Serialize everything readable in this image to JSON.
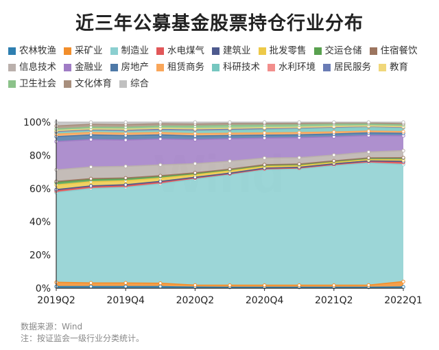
{
  "title": "近三年公募基金股票持仓行业分布",
  "footer": {
    "source": "数据来源：Wind",
    "note": "注：按证监会一级行业分类统计。"
  },
  "watermark": "Wind",
  "chart_data": {
    "type": "area",
    "stacked": true,
    "x": [
      "2019Q2",
      "2019Q3",
      "2019Q4",
      "2020Q1",
      "2020Q2",
      "2020Q3",
      "2020Q4",
      "2021Q1",
      "2021Q2",
      "2021Q3",
      "2022Q1"
    ],
    "x_tick_labels": [
      "2019Q2",
      "2019Q4",
      "2020Q2",
      "2020Q4",
      "2021Q2",
      "2022Q1"
    ],
    "y_ticks": [
      "0%",
      "20%",
      "40%",
      "60%",
      "80%",
      "100%"
    ],
    "ylim": [
      0,
      100
    ],
    "legend_position": "top",
    "grid": false,
    "series": [
      {
        "name": "农林牧渔",
        "color": "#2e7fb0",
        "values": [
          1.0,
          1.0,
          1.0,
          1.0,
          0.7,
          0.6,
          0.6,
          0.6,
          0.6,
          0.6,
          0.8
        ]
      },
      {
        "name": "采矿业",
        "color": "#f28e2b",
        "values": [
          2.6,
          2.2,
          2.2,
          2.0,
          1.2,
          1.2,
          1.2,
          1.2,
          1.2,
          1.3,
          3.2
        ]
      },
      {
        "name": "制造业",
        "color": "#8bcfd0",
        "values": [
          54.0,
          56.8,
          57.5,
          59.5,
          63.8,
          66.5,
          69.5,
          70.0,
          72.0,
          73.5,
          70.5
        ]
      },
      {
        "name": "水电煤气",
        "color": "#e15759",
        "values": [
          1.0,
          0.9,
          0.9,
          0.9,
          0.7,
          0.6,
          0.6,
          0.6,
          0.7,
          0.8,
          1.2
        ]
      },
      {
        "name": "建筑业",
        "color": "#4e5a8e",
        "values": [
          0.8,
          0.7,
          0.7,
          0.6,
          0.4,
          0.4,
          0.4,
          0.4,
          0.4,
          0.5,
          0.7
        ]
      },
      {
        "name": "批发零售",
        "color": "#edc948",
        "values": [
          2.8,
          2.5,
          2.4,
          1.9,
          1.5,
          1.3,
          1.0,
          0.9,
          0.8,
          0.7,
          0.9
        ]
      },
      {
        "name": "交运仓储",
        "color": "#59a14f",
        "values": [
          1.5,
          1.3,
          1.2,
          1.1,
          0.8,
          0.8,
          0.8,
          0.8,
          0.8,
          0.9,
          1.1
        ]
      },
      {
        "name": "住宿餐饮",
        "color": "#9c755f",
        "values": [
          0.6,
          0.6,
          0.5,
          0.4,
          0.4,
          0.3,
          0.3,
          0.3,
          0.2,
          0.2,
          0.2
        ]
      },
      {
        "name": "信息技术",
        "color": "#bab0ac",
        "values": [
          7.0,
          7.0,
          7.0,
          6.5,
          5.5,
          4.8,
          4.0,
          3.8,
          3.5,
          3.5,
          4.2
        ]
      },
      {
        "name": "金融业",
        "color": "#a07cc5",
        "values": [
          17.0,
          16.5,
          15.8,
          15.5,
          14.5,
          13.5,
          12.0,
          12.0,
          11.0,
          10.0,
          9.0
        ]
      },
      {
        "name": "房地产",
        "color": "#4e79a7",
        "values": [
          3.0,
          2.8,
          2.7,
          2.5,
          2.2,
          2.0,
          1.8,
          1.8,
          1.7,
          1.6,
          1.5
        ]
      },
      {
        "name": "租赁商务",
        "color": "#f9a65a",
        "values": [
          1.5,
          1.5,
          1.5,
          1.4,
          1.4,
          1.3,
          1.3,
          1.3,
          1.2,
          1.0,
          1.0
        ]
      },
      {
        "name": "科研技术",
        "color": "#76c7c0",
        "values": [
          1.2,
          1.2,
          1.3,
          1.4,
          1.8,
          2.0,
          2.2,
          2.4,
          2.5,
          2.4,
          2.3
        ]
      },
      {
        "name": "水利环境",
        "color": "#f28e8c",
        "values": [
          0.4,
          0.4,
          0.4,
          0.4,
          0.4,
          0.4,
          0.4,
          0.4,
          0.4,
          0.4,
          0.4
        ]
      },
      {
        "name": "居民服务",
        "color": "#6a7cb5",
        "values": [
          0.1,
          0.1,
          0.1,
          0.1,
          0.1,
          0.1,
          0.1,
          0.1,
          0.1,
          0.1,
          0.1
        ]
      },
      {
        "name": "教育",
        "color": "#f0d77a",
        "values": [
          0.4,
          0.4,
          0.5,
          0.6,
          0.6,
          0.5,
          0.4,
          0.3,
          0.3,
          0.2,
          0.2
        ]
      },
      {
        "name": "卫生社会",
        "color": "#8cc28a",
        "values": [
          1.0,
          1.1,
          1.2,
          1.3,
          1.6,
          1.7,
          1.6,
          1.4,
          1.3,
          1.1,
          1.0
        ]
      },
      {
        "name": "文化体育",
        "color": "#a88f7d",
        "values": [
          1.8,
          1.7,
          1.6,
          1.5,
          1.3,
          1.2,
          1.0,
          1.0,
          0.9,
          0.8,
          0.8
        ]
      },
      {
        "name": "综合",
        "color": "#c0c0c0",
        "values": [
          2.3,
          1.3,
          1.5,
          0.9,
          1.1,
          0.8,
          0.8,
          0.7,
          0.4,
          0.4,
          0.9
        ]
      }
    ]
  }
}
